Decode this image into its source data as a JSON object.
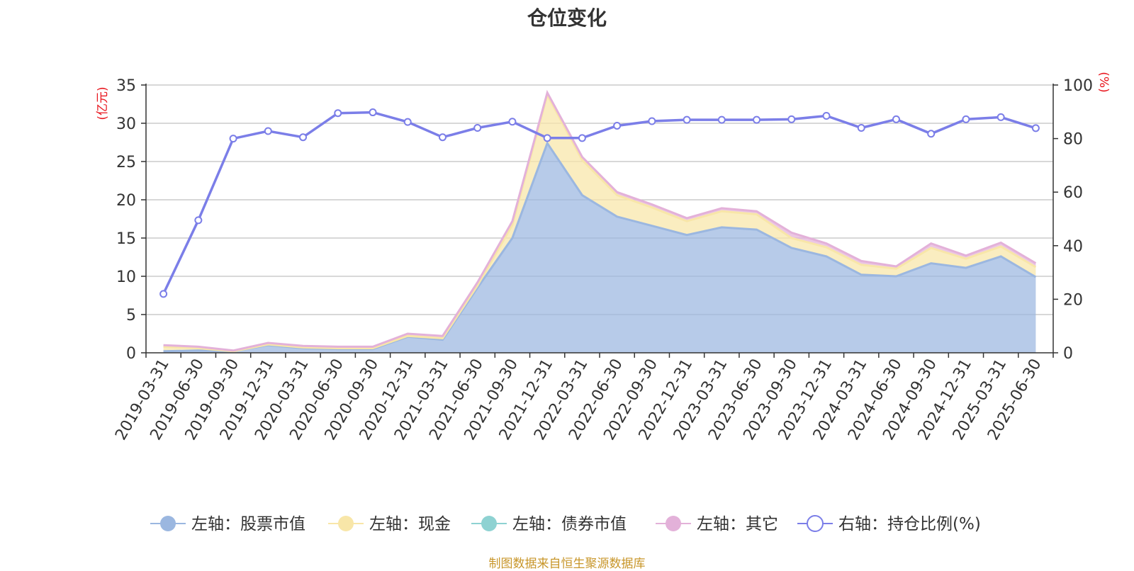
{
  "title": "仓位变化",
  "source": "制图数据来自恒生聚源数据库",
  "chart_data": {
    "type": "area",
    "title": "仓位变化",
    "left_axis": {
      "unit": "(亿元)",
      "range": [
        0,
        35
      ],
      "ticks": [
        0,
        5,
        10,
        15,
        20,
        25,
        30,
        35
      ]
    },
    "right_axis": {
      "unit": "(%)",
      "range": [
        0,
        100
      ],
      "ticks": [
        0,
        20,
        40,
        60,
        80,
        100
      ]
    },
    "grid": true,
    "legend_position": "bottom",
    "categories": [
      "2019-03-31",
      "2019-06-30",
      "2019-09-30",
      "2019-12-31",
      "2020-03-31",
      "2020-06-30",
      "2020-09-30",
      "2020-12-31",
      "2021-03-31",
      "2021-06-30",
      "2021-09-30",
      "2021-12-31",
      "2022-03-31",
      "2022-06-30",
      "2022-09-30",
      "2022-12-31",
      "2023-03-31",
      "2023-06-30",
      "2023-09-30",
      "2023-12-31",
      "2024-03-31",
      "2024-06-30",
      "2024-09-30",
      "2024-12-31",
      "2025-03-31",
      "2025-06-30"
    ],
    "series": [
      {
        "name": "左轴：股票市值",
        "axis": "left",
        "type": "area",
        "color": "#9bb7e0",
        "values": [
          0.2,
          0.3,
          0.2,
          1.0,
          0.6,
          0.5,
          0.5,
          2.1,
          1.7,
          8.5,
          15.0,
          27.4,
          20.6,
          17.8,
          16.6,
          15.4,
          16.4,
          16.1,
          13.7,
          12.6,
          10.2,
          10.0,
          11.7,
          11.1,
          12.6,
          9.9
        ]
      },
      {
        "name": "左轴：现金",
        "axis": "left",
        "type": "area",
        "color": "#f8e6a8",
        "values": [
          0.6,
          0.3,
          0.0,
          0.1,
          0.1,
          0.1,
          0.1,
          0.1,
          0.2,
          0.3,
          1.7,
          6.3,
          4.6,
          2.8,
          2.4,
          1.8,
          2.1,
          2.0,
          1.3,
          1.2,
          1.3,
          1.0,
          2.0,
          1.2,
          1.3,
          1.3
        ]
      },
      {
        "name": "左轴：债券市值",
        "axis": "left",
        "type": "area",
        "color": "#8ed2d2",
        "values": [
          0,
          0,
          0,
          0,
          0,
          0,
          0,
          0,
          0,
          0,
          0,
          0,
          0,
          0,
          0,
          0,
          0,
          0,
          0,
          0,
          0,
          0,
          0,
          0,
          0,
          0
        ]
      },
      {
        "name": "左轴：其它",
        "axis": "left",
        "type": "area",
        "color": "#e3b1d9",
        "values": [
          0.2,
          0.2,
          0.1,
          0.2,
          0.2,
          0.2,
          0.2,
          0.3,
          0.3,
          0.4,
          0.5,
          0.3,
          0.4,
          0.4,
          0.4,
          0.4,
          0.4,
          0.4,
          0.7,
          0.5,
          0.5,
          0.3,
          0.6,
          0.4,
          0.5,
          0.5
        ]
      },
      {
        "name": "右轴：持仓比例(%)",
        "axis": "right",
        "type": "line",
        "color": "#7b7ee8",
        "values": [
          22.0,
          49.5,
          80.0,
          82.8,
          80.5,
          89.5,
          89.8,
          86.2,
          80.5,
          84.0,
          86.3,
          80.2,
          80.2,
          84.8,
          86.5,
          87.0,
          87.0,
          87.0,
          87.2,
          88.5,
          84.0,
          87.2,
          81.8,
          87.2,
          88.0,
          83.9
        ]
      }
    ]
  }
}
